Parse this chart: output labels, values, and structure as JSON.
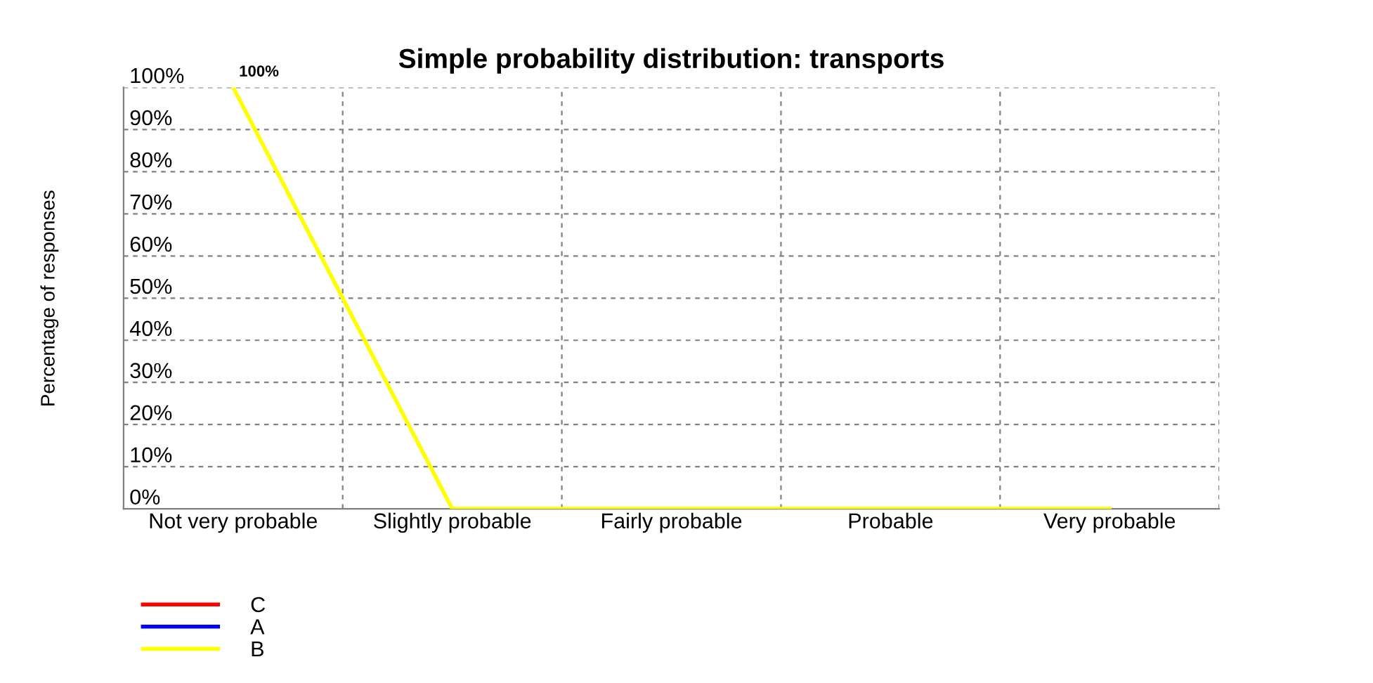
{
  "chart_data": {
    "type": "line",
    "title": "Simple probability distribution: transports",
    "ylabel": "Percentage of responses",
    "categories": [
      "Not very probable",
      "Slightly probable",
      "Fairly probable",
      "Probable",
      "Very probable"
    ],
    "series": [
      {
        "name": "C",
        "color": "#ff0000",
        "values": [
          null,
          null,
          null,
          null,
          null
        ]
      },
      {
        "name": "A",
        "color": "#0000ff",
        "values": [
          null,
          null,
          null,
          null,
          null
        ]
      },
      {
        "name": "B",
        "color": "#ffff00",
        "values": [
          100,
          0,
          0,
          0,
          0
        ],
        "value_labels": [
          "100%",
          null,
          null,
          null,
          null
        ]
      }
    ],
    "ylim": [
      0,
      100
    ],
    "yticks": [
      {
        "value": 0,
        "label": "0%"
      },
      {
        "value": 10,
        "label": "10%"
      },
      {
        "value": 20,
        "label": "20%"
      },
      {
        "value": 30,
        "label": "30%"
      },
      {
        "value": 40,
        "label": "40%"
      },
      {
        "value": 50,
        "label": "50%"
      },
      {
        "value": 60,
        "label": "60%"
      },
      {
        "value": 70,
        "label": "70%"
      },
      {
        "value": 80,
        "label": "80%"
      },
      {
        "value": 90,
        "label": "90%"
      },
      {
        "value": 100,
        "label": "100%"
      }
    ],
    "grid": true,
    "legend": "bottom left",
    "marker": "none",
    "line_style": "solid"
  }
}
